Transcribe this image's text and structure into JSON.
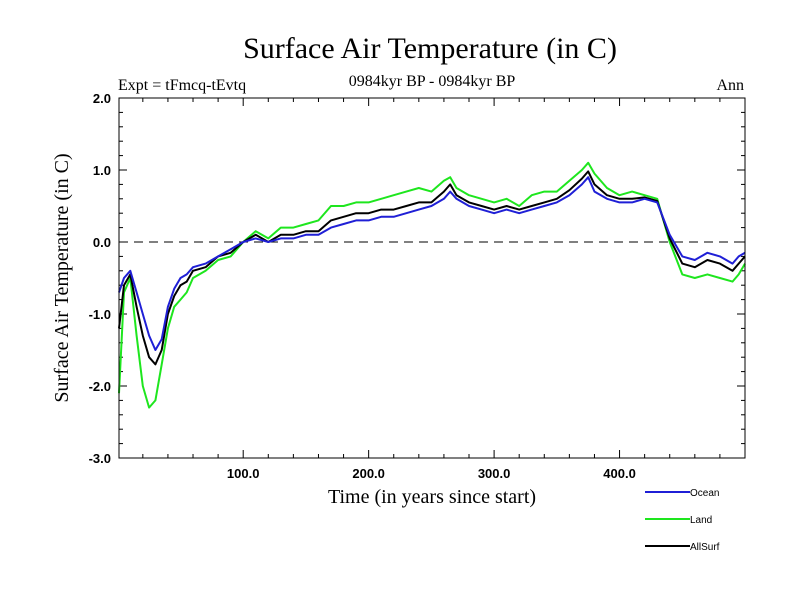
{
  "chart_data": {
    "type": "line",
    "title": "Surface Air Temperature (in C)",
    "subtitle": "0984kyr BP - 0984kyr BP",
    "left_label": "Expt = tFmcq-tEvtq",
    "right_label": "Ann",
    "xlabel": "Time (in years since start)",
    "ylabel": "Surface Air Temperature (in C)",
    "xlim": [
      1,
      500
    ],
    "ylim": [
      -3.0,
      2.0
    ],
    "xticks": [
      {
        "value": 100,
        "label": "100.0"
      },
      {
        "value": 200,
        "label": "200.0"
      },
      {
        "value": 300,
        "label": "300.0"
      },
      {
        "value": 400,
        "label": "400.0"
      }
    ],
    "yticks": [
      {
        "value": 2.0,
        "label": "2.0"
      },
      {
        "value": 1.0,
        "label": "1.0"
      },
      {
        "value": 0.0,
        "label": "0.0"
      },
      {
        "value": -1.0,
        "label": "-1.0"
      },
      {
        "value": -2.0,
        "label": "-2.0"
      },
      {
        "value": -3.0,
        "label": "-3.0"
      }
    ],
    "reference_line": {
      "y": 0.0,
      "style": "dashed"
    },
    "legend_position": "bottom-right",
    "series": [
      {
        "name": "Ocean",
        "color": "#1f1fd6",
        "x": [
          1,
          5,
          10,
          15,
          20,
          25,
          30,
          35,
          40,
          45,
          50,
          55,
          60,
          70,
          80,
          90,
          100,
          110,
          120,
          130,
          140,
          150,
          160,
          170,
          180,
          190,
          200,
          210,
          220,
          230,
          240,
          250,
          260,
          265,
          270,
          280,
          290,
          300,
          310,
          320,
          330,
          340,
          350,
          360,
          370,
          375,
          380,
          390,
          400,
          410,
          420,
          430,
          440,
          450,
          460,
          470,
          480,
          490,
          495,
          500
        ],
        "values": [
          -0.7,
          -0.5,
          -0.4,
          -0.7,
          -1.0,
          -1.3,
          -1.5,
          -1.35,
          -0.9,
          -0.65,
          -0.5,
          -0.45,
          -0.35,
          -0.3,
          -0.2,
          -0.1,
          0.0,
          0.05,
          0.0,
          0.05,
          0.05,
          0.1,
          0.1,
          0.2,
          0.25,
          0.3,
          0.3,
          0.35,
          0.35,
          0.4,
          0.45,
          0.5,
          0.6,
          0.7,
          0.6,
          0.5,
          0.45,
          0.4,
          0.45,
          0.4,
          0.45,
          0.5,
          0.55,
          0.65,
          0.8,
          0.9,
          0.7,
          0.6,
          0.55,
          0.55,
          0.6,
          0.55,
          0.1,
          -0.2,
          -0.25,
          -0.15,
          -0.2,
          -0.3,
          -0.2,
          -0.15
        ]
      },
      {
        "name": "Land",
        "color": "#1ee61e",
        "x": [
          1,
          5,
          10,
          15,
          20,
          25,
          30,
          35,
          40,
          45,
          50,
          55,
          60,
          70,
          80,
          90,
          100,
          110,
          120,
          130,
          140,
          150,
          160,
          170,
          180,
          190,
          200,
          210,
          220,
          230,
          240,
          250,
          260,
          265,
          270,
          280,
          290,
          300,
          310,
          320,
          330,
          340,
          350,
          360,
          370,
          375,
          380,
          390,
          400,
          410,
          420,
          430,
          440,
          450,
          460,
          470,
          480,
          490,
          495,
          500
        ],
        "values": [
          -2.1,
          -0.7,
          -0.5,
          -1.3,
          -2.0,
          -2.3,
          -2.2,
          -1.7,
          -1.2,
          -0.9,
          -0.8,
          -0.7,
          -0.5,
          -0.4,
          -0.25,
          -0.2,
          0.0,
          0.15,
          0.05,
          0.2,
          0.2,
          0.25,
          0.3,
          0.5,
          0.5,
          0.55,
          0.55,
          0.6,
          0.65,
          0.7,
          0.75,
          0.7,
          0.85,
          0.9,
          0.75,
          0.65,
          0.6,
          0.55,
          0.6,
          0.5,
          0.65,
          0.7,
          0.7,
          0.85,
          1.0,
          1.1,
          0.95,
          0.75,
          0.65,
          0.7,
          0.65,
          0.6,
          0.0,
          -0.45,
          -0.5,
          -0.45,
          -0.5,
          -0.55,
          -0.45,
          -0.3
        ]
      },
      {
        "name": "AllSurf",
        "color": "#000000",
        "x": [
          1,
          5,
          10,
          15,
          20,
          25,
          30,
          35,
          40,
          45,
          50,
          55,
          60,
          70,
          80,
          90,
          100,
          110,
          120,
          130,
          140,
          150,
          160,
          170,
          180,
          190,
          200,
          210,
          220,
          230,
          240,
          250,
          260,
          265,
          270,
          280,
          290,
          300,
          310,
          320,
          330,
          340,
          350,
          360,
          370,
          375,
          380,
          390,
          400,
          410,
          420,
          430,
          440,
          450,
          460,
          470,
          480,
          490,
          495,
          500
        ],
        "values": [
          -1.2,
          -0.6,
          -0.45,
          -0.9,
          -1.3,
          -1.6,
          -1.7,
          -1.5,
          -1.0,
          -0.75,
          -0.6,
          -0.55,
          -0.4,
          -0.35,
          -0.2,
          -0.15,
          0.0,
          0.1,
          0.0,
          0.1,
          0.1,
          0.15,
          0.15,
          0.3,
          0.35,
          0.4,
          0.4,
          0.45,
          0.45,
          0.5,
          0.55,
          0.55,
          0.7,
          0.8,
          0.65,
          0.55,
          0.5,
          0.45,
          0.5,
          0.45,
          0.5,
          0.55,
          0.6,
          0.72,
          0.88,
          0.98,
          0.8,
          0.65,
          0.6,
          0.6,
          0.62,
          0.57,
          0.05,
          -0.3,
          -0.35,
          -0.25,
          -0.3,
          -0.4,
          -0.3,
          -0.2
        ]
      }
    ]
  }
}
